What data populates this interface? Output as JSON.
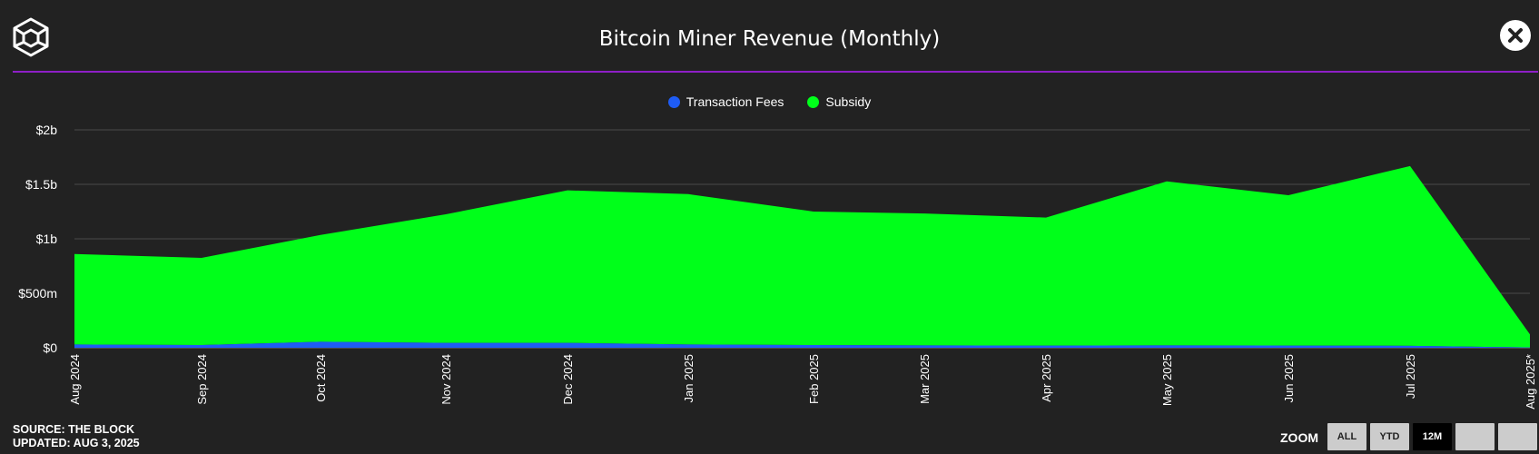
{
  "header": {
    "title": "Bitcoin Miner Revenue (Monthly)"
  },
  "legend": [
    {
      "name": "Transaction Fees",
      "color": "#1e5cf5"
    },
    {
      "name": "Subsidy",
      "color": "#00ff1a"
    }
  ],
  "footer": {
    "source": "SOURCE: THE BLOCK",
    "updated": "UPDATED: AUG 3, 2025"
  },
  "zoom": {
    "label": "ZOOM",
    "buttons": [
      {
        "label": "ALL",
        "active": false
      },
      {
        "label": "YTD",
        "active": false
      },
      {
        "label": "12M",
        "active": true
      },
      {
        "label": "",
        "active": false
      },
      {
        "label": "",
        "active": false
      }
    ]
  },
  "chart_data": {
    "type": "area",
    "stacked": true,
    "categories": [
      "Aug 2024",
      "Sep 2024",
      "Oct 2024",
      "Nov 2024",
      "Dec 2024",
      "Jan 2025",
      "Feb 2025",
      "Mar 2025",
      "Apr 2025",
      "May 2025",
      "Jun 2025",
      "Jul 2025",
      "Aug 2025*"
    ],
    "y_ticks": [
      "$0",
      "$500m",
      "$1b",
      "$1.5b",
      "$2b"
    ],
    "ylim": [
      0,
      2000
    ],
    "grid": true,
    "legend_position": "top-center",
    "series": [
      {
        "name": "Transaction Fees",
        "color": "#1e5cf5",
        "values": [
          30,
          25,
          55,
          45,
          45,
          30,
          25,
          22,
          20,
          22,
          20,
          18,
          3
        ]
      },
      {
        "name": "Subsidy",
        "color": "#00ff1a",
        "values": [
          830,
          800,
          980,
          1180,
          1400,
          1380,
          1225,
          1210,
          1175,
          1505,
          1380,
          1650,
          120
        ]
      }
    ]
  }
}
